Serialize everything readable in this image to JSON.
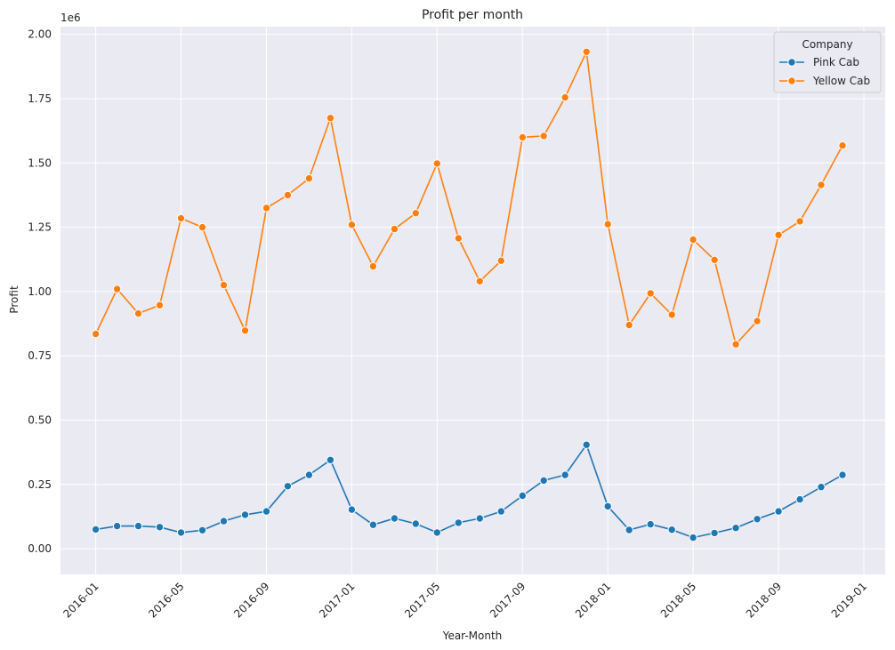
{
  "chart_data": {
    "type": "line",
    "title": "Profit per month",
    "xlabel": "Year-Month",
    "ylabel": "Profit",
    "y_offset_label": "1e6",
    "ylim": [
      -0.1,
      2.03
    ],
    "y_ticks": [
      0.0,
      0.25,
      0.5,
      0.75,
      1.0,
      1.25,
      1.5,
      1.75,
      2.0
    ],
    "y_tick_labels": [
      "0.00",
      "0.25",
      "0.50",
      "0.75",
      "1.00",
      "1.25",
      "1.50",
      "1.75",
      "2.00"
    ],
    "x_tick_labels": [
      "2016-01",
      "2016-05",
      "2016-09",
      "2017-01",
      "2017-05",
      "2017-09",
      "2018-01",
      "2018-05",
      "2018-09",
      "2019-01"
    ],
    "grid": true,
    "legend": {
      "title": "Company",
      "position": "top-right"
    },
    "x": [
      "2016-01",
      "2016-02",
      "2016-03",
      "2016-04",
      "2016-05",
      "2016-06",
      "2016-07",
      "2016-08",
      "2016-09",
      "2016-10",
      "2016-11",
      "2016-12",
      "2017-01",
      "2017-02",
      "2017-03",
      "2017-04",
      "2017-05",
      "2017-06",
      "2017-07",
      "2017-08",
      "2017-09",
      "2017-10",
      "2017-11",
      "2017-12",
      "2018-01",
      "2018-02",
      "2018-03",
      "2018-04",
      "2018-05",
      "2018-06",
      "2018-07",
      "2018-08",
      "2018-09",
      "2018-10",
      "2018-11",
      "2018-12"
    ],
    "series": [
      {
        "name": "Pink Cab",
        "color": "#1f77b4",
        "values": [
          0.075,
          0.088,
          0.088,
          0.084,
          0.063,
          0.072,
          0.107,
          0.132,
          0.145,
          0.243,
          0.287,
          0.345,
          0.152,
          0.093,
          0.118,
          0.097,
          0.063,
          0.101,
          0.118,
          0.145,
          0.206,
          0.265,
          0.287,
          0.404,
          0.165,
          0.073,
          0.095,
          0.074,
          0.043,
          0.061,
          0.081,
          0.115,
          0.145,
          0.192,
          0.24,
          0.287
        ]
      },
      {
        "name": "Yellow Cab",
        "color": "#ff7f0e",
        "values": [
          0.835,
          1.01,
          0.915,
          0.947,
          1.285,
          1.25,
          1.025,
          0.848,
          1.325,
          1.375,
          1.44,
          1.675,
          1.26,
          1.098,
          1.243,
          1.305,
          1.498,
          1.207,
          1.04,
          1.12,
          1.6,
          1.605,
          1.755,
          1.932,
          1.262,
          0.87,
          0.993,
          0.91,
          1.202,
          1.123,
          0.795,
          0.885,
          1.22,
          1.273,
          1.415,
          1.568
        ]
      }
    ]
  }
}
